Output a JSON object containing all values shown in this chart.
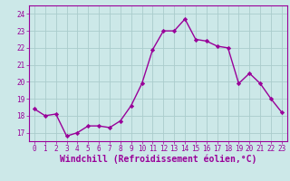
{
  "x": [
    0,
    1,
    2,
    3,
    4,
    5,
    6,
    7,
    8,
    9,
    10,
    11,
    12,
    13,
    14,
    15,
    16,
    17,
    18,
    19,
    20,
    21,
    22,
    23
  ],
  "y": [
    18.4,
    18.0,
    18.1,
    16.8,
    17.0,
    17.4,
    17.4,
    17.3,
    17.7,
    18.6,
    19.9,
    21.9,
    23.0,
    23.0,
    23.7,
    22.5,
    22.4,
    22.1,
    22.0,
    19.9,
    20.5,
    19.9,
    19.0,
    18.2
  ],
  "line_color": "#990099",
  "marker": "D",
  "marker_size": 2.2,
  "bg_color": "#cce8e8",
  "grid_color": "#aacccc",
  "xlabel": "Windchill (Refroidissement éolien,°C)",
  "ylim": [
    16.5,
    24.5
  ],
  "xlim": [
    -0.5,
    23.5
  ],
  "yticks": [
    17,
    18,
    19,
    20,
    21,
    22,
    23,
    24
  ],
  "xticks": [
    0,
    1,
    2,
    3,
    4,
    5,
    6,
    7,
    8,
    9,
    10,
    11,
    12,
    13,
    14,
    15,
    16,
    17,
    18,
    19,
    20,
    21,
    22,
    23
  ],
  "tick_fontsize": 5.5,
  "label_fontsize": 7.0,
  "linewidth": 1.0
}
